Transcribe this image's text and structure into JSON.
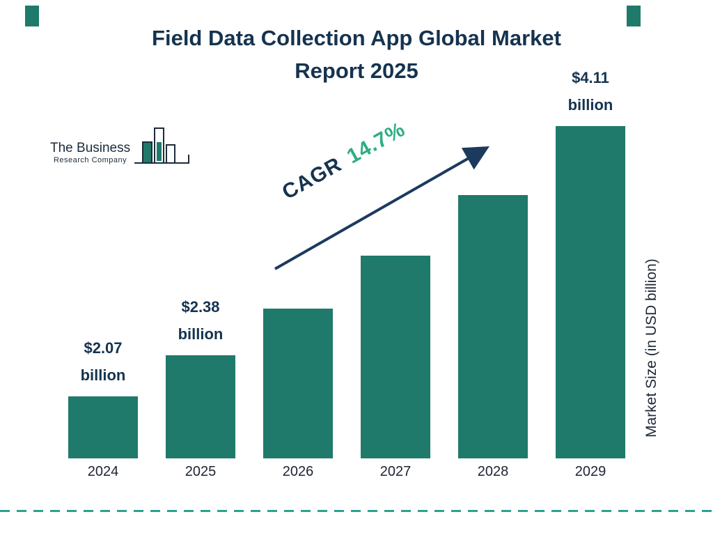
{
  "header": {
    "title_line1": "Field Data Collection App Global Market",
    "title_line2": "Report 2025"
  },
  "logo": {
    "line1": "The Business",
    "line2": "Research Company"
  },
  "chart_data": {
    "type": "bar",
    "title": "Field Data Collection App Global Market Report 2025",
    "categories": [
      "2024",
      "2025",
      "2026",
      "2027",
      "2028",
      "2029"
    ],
    "values": [
      2.07,
      2.38,
      2.73,
      3.13,
      3.59,
      4.11
    ],
    "value_unit": "USD billion",
    "annotations": [
      "$2.07 billion",
      "$2.38 billion",
      "",
      "",
      "",
      "$4.11 billion"
    ],
    "ylabel": "Market Size (in USD billion)",
    "xlabel": "",
    "grid": false,
    "legend_position": "none",
    "cagr": {
      "label": "CAGR",
      "value": "14.7%"
    },
    "colors": {
      "bar": "#1F7A6B",
      "navy": "#15334F",
      "green": "#2FAE83",
      "dash_line": "#2AA38E",
      "arrow": "#1C3A5E"
    }
  }
}
